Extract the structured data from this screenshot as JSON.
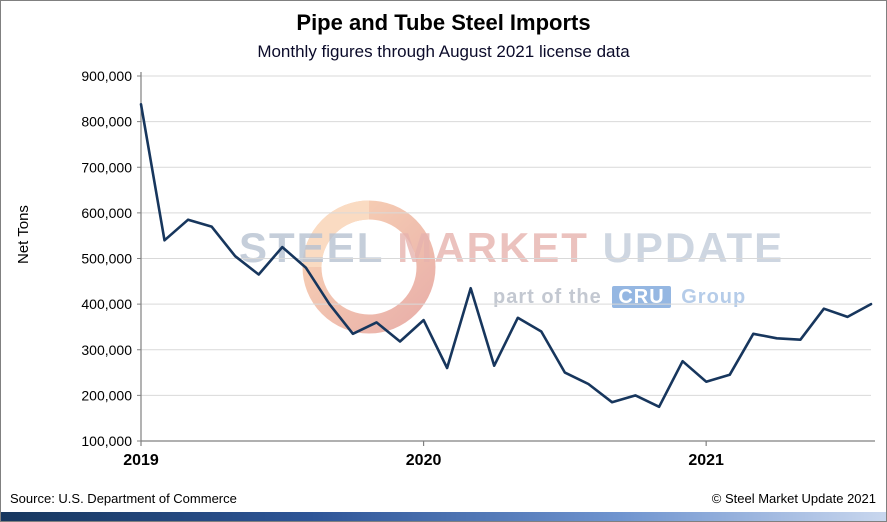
{
  "header": {
    "title": "Pipe and Tube Steel Imports",
    "subtitle": "Monthly figures through August 2021 license data"
  },
  "chart_data": {
    "type": "line",
    "title": "Pipe and Tube Steel Imports",
    "subtitle": "Monthly figures through August 2021 license data",
    "ylabel": "Net Tons",
    "xlabel": "",
    "ylim": [
      100000,
      900000
    ],
    "ytick_step": 100000,
    "grid": true,
    "legend": "none",
    "x_tick_labels": [
      "2019",
      "2020",
      "2021"
    ],
    "x_tick_indices": [
      0,
      12,
      24
    ],
    "x": [
      "Jan 2019",
      "Feb 2019",
      "Mar 2019",
      "Apr 2019",
      "May 2019",
      "Jun 2019",
      "Jul 2019",
      "Aug 2019",
      "Sep 2019",
      "Oct 2019",
      "Nov 2019",
      "Dec 2019",
      "Jan 2020",
      "Feb 2020",
      "Mar 2020",
      "Apr 2020",
      "May 2020",
      "Jun 2020",
      "Jul 2020",
      "Aug 2020",
      "Sep 2020",
      "Oct 2020",
      "Nov 2020",
      "Dec 2020",
      "Jan 2021",
      "Feb 2021",
      "Mar 2021",
      "Apr 2021",
      "May 2021",
      "Jun 2021",
      "Jul 2021",
      "Aug 2021"
    ],
    "values": [
      838000,
      540000,
      585000,
      570000,
      505000,
      465000,
      525000,
      480000,
      400000,
      335000,
      360000,
      318000,
      365000,
      260000,
      435000,
      265000,
      370000,
      340000,
      250000,
      225000,
      185000,
      200000,
      175000,
      275000,
      230000,
      245000,
      335000,
      325000,
      322000,
      390000,
      372000,
      400000
    ],
    "colors": {
      "line": "#17365d",
      "grid": "#d9d9d9",
      "axis": "#808080",
      "tick_text": "#000000"
    }
  },
  "watermark": {
    "steel": "STEEL",
    "market": "MARKET",
    "update": "UPDATE",
    "part_of_the": "part of the",
    "cru": "CRU",
    "group": "Group"
  },
  "footer": {
    "source": "Source: U.S. Department of Commerce",
    "copyright": "© Steel Market Update 2021"
  }
}
